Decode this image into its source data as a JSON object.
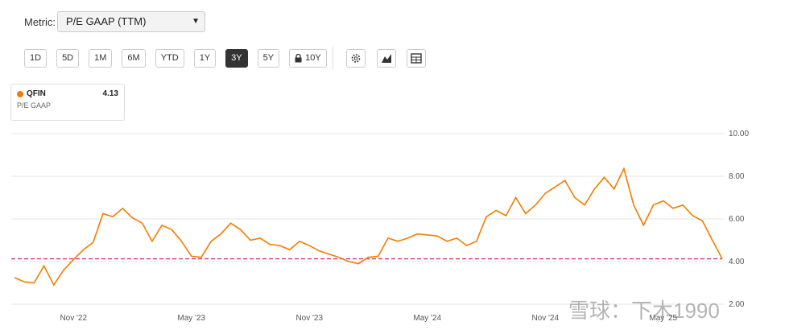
{
  "ui": {
    "metric_label": "Metric:",
    "metric_value": "P/E GAAP (TTM)",
    "ranges": [
      "1D",
      "5D",
      "1M",
      "6M",
      "YTD",
      "1Y",
      "3Y",
      "5Y",
      "10Y"
    ],
    "active_range": "3Y",
    "watermark": "雪球：下木1990"
  },
  "chart_data": {
    "type": "line",
    "categories": [
      null,
      null,
      null,
      null,
      null,
      null,
      "Nov '22",
      null,
      null,
      null,
      null,
      null,
      null,
      null,
      null,
      null,
      null,
      null,
      "May '23",
      null,
      null,
      null,
      null,
      null,
      null,
      null,
      null,
      null,
      null,
      null,
      "Nov '23",
      null,
      null,
      null,
      null,
      null,
      null,
      null,
      null,
      null,
      null,
      null,
      "May '24",
      null,
      null,
      null,
      null,
      null,
      null,
      null,
      null,
      null,
      null,
      null,
      "Nov '24",
      null,
      null,
      null,
      null,
      null,
      null,
      null,
      null,
      null,
      null,
      null,
      "May '25",
      null,
      null,
      null,
      null,
      null,
      null
    ],
    "series": [
      {
        "name": "QFIN",
        "metric": "P/E GAAP",
        "color": "#f57c00",
        "values": [
          3.25,
          3.05,
          3.0,
          3.8,
          2.9,
          3.6,
          4.1,
          4.55,
          4.9,
          6.25,
          6.1,
          6.5,
          6.05,
          5.8,
          4.95,
          5.7,
          5.5,
          4.95,
          4.25,
          4.2,
          4.95,
          5.3,
          5.8,
          5.5,
          5.0,
          5.1,
          4.8,
          4.75,
          4.55,
          4.95,
          4.75,
          4.5,
          4.35,
          4.2,
          4.0,
          3.9,
          4.2,
          4.25,
          5.1,
          4.95,
          5.1,
          5.3,
          5.25,
          5.2,
          4.95,
          5.1,
          4.75,
          4.95,
          6.1,
          6.4,
          6.15,
          7.0,
          6.25,
          6.65,
          7.2,
          7.5,
          7.8,
          7.0,
          6.65,
          7.4,
          7.95,
          7.4,
          8.35,
          6.65,
          5.7,
          6.65,
          6.85,
          6.5,
          6.65,
          6.15,
          5.9,
          5.0,
          4.13
        ]
      }
    ],
    "ylim": [
      2,
      10
    ],
    "yticks": [
      {
        "value": 2,
        "label": "2.00"
      },
      {
        "value": 4,
        "label": "4.00"
      },
      {
        "value": 6,
        "label": "6.00"
      },
      {
        "value": 8,
        "label": "8.00"
      },
      {
        "value": 10,
        "label": "10.00"
      }
    ],
    "grid": true,
    "reference_line_color": "#d63384"
  }
}
